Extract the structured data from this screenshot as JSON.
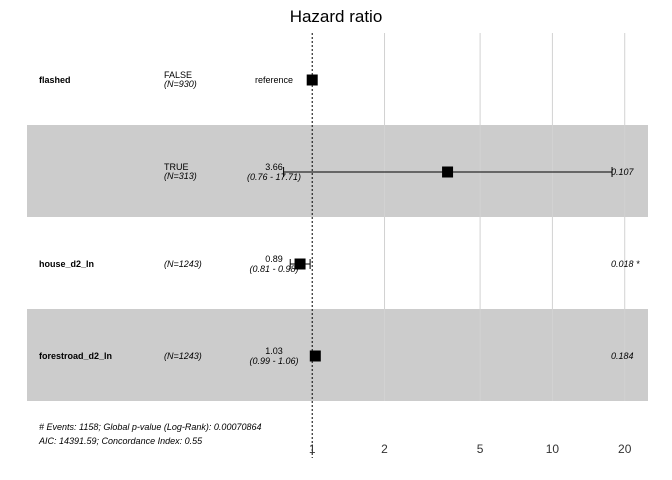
{
  "chart_data": {
    "type": "forest",
    "title": "Hazard ratio",
    "x_scale": "log",
    "xlim": [
      0.7,
      25
    ],
    "ticks": [
      1,
      2,
      5,
      10,
      20
    ],
    "tick_labels": [
      "1",
      "2",
      "5",
      "10",
      "20"
    ],
    "reference_line": 1,
    "rows": [
      {
        "variable": "flashed",
        "level": "FALSE",
        "n": "(N=930)",
        "estimate_label": "reference",
        "ci_label": "",
        "hr": 1,
        "ci": null,
        "p": "",
        "shaded": false
      },
      {
        "variable": "",
        "level": "TRUE",
        "n": "(N=313)",
        "estimate_label": "3.66",
        "ci_label": "(0.76 - 17.71)",
        "hr": 3.66,
        "ci": [
          0.76,
          17.71
        ],
        "p": "0.107",
        "shaded": true
      },
      {
        "variable": "house_d2_ln",
        "level": "",
        "n": "(N=1243)",
        "estimate_label": "0.89",
        "ci_label": "(0.81 -  0.98)",
        "hr": 0.89,
        "ci": [
          0.81,
          0.98
        ],
        "p": "0.018 *",
        "shaded": false
      },
      {
        "variable": "forestroad_d2_ln",
        "level": "",
        "n": "(N=1243)",
        "estimate_label": "1.03",
        "ci_label": "(0.99 -  1.06)",
        "hr": 1.03,
        "ci": [
          0.99,
          1.06
        ],
        "p": "0.184",
        "shaded": true
      }
    ],
    "footer": [
      "# Events: 1158; Global p-value (Log-Rank): 0.00070864",
      "AIC: 14391.59; Concordance Index: 0.55"
    ]
  },
  "colors": {
    "shade": "#cccccc",
    "grid": "#d2d2d2",
    "marker": "#000000"
  }
}
